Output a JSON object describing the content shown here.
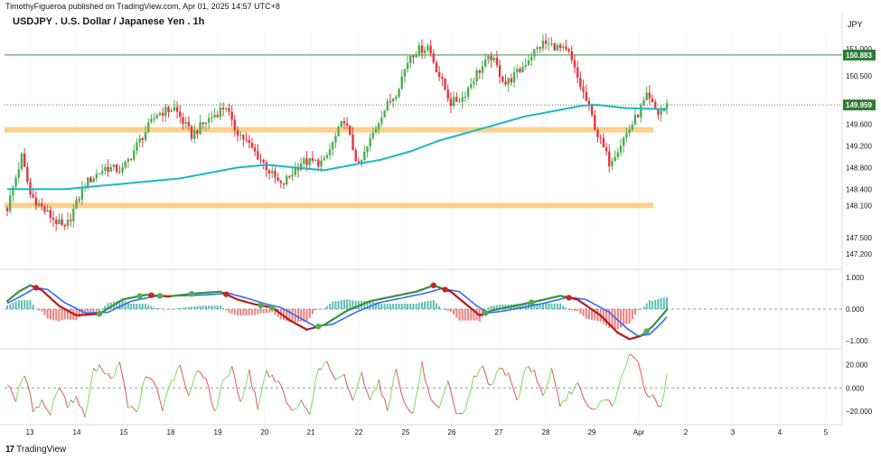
{
  "header": {
    "publisher": "TimothyFigueroa published on TradingView.com, Apr 01, 2025 14:57 UTC+8",
    "symbol": "USDJPY . U.S. Dollar / Japanese Yen . 1h",
    "currency": "JPY"
  },
  "footer": {
    "logo_text": "TradingView",
    "logo_icon": "tradingview-logo-icon"
  },
  "colors": {
    "up": "#4caf50",
    "down": "#e5343f",
    "ma": "#18b8c4",
    "zone": "#ffc77a",
    "hline": "#3d9140",
    "macd_fast": "#3d9140",
    "macd_signal": "#2962ff",
    "hist_up": "#26a69a",
    "hist_down": "#ef5350",
    "dot_up": "#4caf50",
    "dot_down": "#c62828",
    "osc_up": "#7be05a",
    "osc_down": "#e5535c",
    "price_label": "#2e7d32"
  },
  "chart_data": [
    {
      "type": "candlestick",
      "title": "USDJPY . U.S. Dollar / Japanese Yen . 1h",
      "x_ticks": [
        "13",
        "14",
        "15",
        "18",
        "19",
        "20",
        "21",
        "22",
        "25",
        "26",
        "27",
        "28",
        "29",
        "Apr",
        "2",
        "3",
        "4",
        "5"
      ],
      "y_ticks": [
        "151.000",
        "150.500",
        "149.600",
        "149.200",
        "148.800",
        "148.400",
        "148.100",
        "147.500",
        "147.200"
      ],
      "ylim": [
        146.95,
        151.3
      ],
      "candle_count": 230,
      "path_anchors": [
        [
          0,
          148.05
        ],
        [
          5,
          149.0
        ],
        [
          8,
          148.3
        ],
        [
          13,
          148.0
        ],
        [
          20,
          147.65
        ],
        [
          27,
          148.5
        ],
        [
          34,
          148.8
        ],
        [
          40,
          148.75
        ],
        [
          46,
          149.3
        ],
        [
          52,
          149.8
        ],
        [
          58,
          149.9
        ],
        [
          64,
          149.4
        ],
        [
          70,
          149.7
        ],
        [
          76,
          149.95
        ],
        [
          78,
          149.6
        ],
        [
          88,
          148.95
        ],
        [
          95,
          148.45
        ],
        [
          102,
          148.9
        ],
        [
          110,
          148.9
        ],
        [
          117,
          149.7
        ],
        [
          122,
          148.8
        ],
        [
          130,
          149.8
        ],
        [
          135,
          150.2
        ],
        [
          140,
          150.9
        ],
        [
          146,
          151.05
        ],
        [
          150,
          150.5
        ],
        [
          154,
          150.0
        ],
        [
          158,
          150.1
        ],
        [
          163,
          150.55
        ],
        [
          168,
          150.85
        ],
        [
          173,
          150.35
        ],
        [
          178,
          150.6
        ],
        [
          182,
          150.9
        ],
        [
          186,
          151.1
        ],
        [
          190,
          151.05
        ],
        [
          195,
          150.9
        ],
        [
          198,
          150.45
        ],
        [
          202,
          149.9
        ],
        [
          205,
          149.4
        ],
        [
          209,
          148.9
        ],
        [
          213,
          149.25
        ],
        [
          218,
          149.7
        ],
        [
          222,
          150.1
        ],
        [
          226,
          149.8
        ],
        [
          229,
          149.95
        ]
      ],
      "moving_average_anchors": [
        [
          0,
          148.4
        ],
        [
          20,
          148.4
        ],
        [
          40,
          148.5
        ],
        [
          60,
          148.6
        ],
        [
          80,
          148.8
        ],
        [
          90,
          148.85
        ],
        [
          110,
          148.75
        ],
        [
          120,
          148.85
        ],
        [
          130,
          148.95
        ],
        [
          140,
          149.1
        ],
        [
          150,
          149.3
        ],
        [
          160,
          149.45
        ],
        [
          170,
          149.6
        ],
        [
          180,
          149.75
        ],
        [
          190,
          149.85
        ],
        [
          200,
          149.95
        ],
        [
          205,
          149.96
        ],
        [
          215,
          149.9
        ],
        [
          229,
          149.88
        ]
      ],
      "horizontal_lines": [
        150.883,
        149.959
      ],
      "support_zones": [
        [
          149.55,
          149.45
        ],
        [
          148.15,
          148.05
        ]
      ],
      "price_labels": [
        {
          "value": "150.883",
          "price": 150.883
        },
        {
          "value": "149.959",
          "price": 149.959
        }
      ]
    },
    {
      "type": "line",
      "name": "momentum oscillator with histogram",
      "y_ticks": [
        "1.000",
        "0.000",
        "−1.000"
      ],
      "ylim": [
        -1.2,
        1.2
      ],
      "fast_anchors": [
        [
          0,
          0.25
        ],
        [
          4,
          0.55
        ],
        [
          8,
          0.75
        ],
        [
          12,
          0.6
        ],
        [
          18,
          0.1
        ],
        [
          24,
          -0.2
        ],
        [
          32,
          -0.15
        ],
        [
          40,
          0.3
        ],
        [
          48,
          0.45
        ],
        [
          56,
          0.4
        ],
        [
          66,
          0.5
        ],
        [
          74,
          0.55
        ],
        [
          80,
          0.3
        ],
        [
          86,
          0.15
        ],
        [
          92,
          0.05
        ],
        [
          98,
          -0.35
        ],
        [
          104,
          -0.65
        ],
        [
          110,
          -0.5
        ],
        [
          118,
          -0.05
        ],
        [
          126,
          0.25
        ],
        [
          134,
          0.4
        ],
        [
          142,
          0.55
        ],
        [
          148,
          0.75
        ],
        [
          154,
          0.55
        ],
        [
          160,
          0.1
        ],
        [
          164,
          -0.2
        ],
        [
          168,
          -0.05
        ],
        [
          176,
          0.1
        ],
        [
          184,
          0.25
        ],
        [
          192,
          0.42
        ],
        [
          198,
          0.3
        ],
        [
          206,
          -0.2
        ],
        [
          212,
          -0.75
        ],
        [
          216,
          -0.95
        ],
        [
          220,
          -0.85
        ],
        [
          224,
          -0.55
        ],
        [
          229,
          -0.02
        ]
      ],
      "signal_anchors": [
        [
          0,
          0.18
        ],
        [
          5,
          0.42
        ],
        [
          10,
          0.68
        ],
        [
          14,
          0.62
        ],
        [
          20,
          0.2
        ],
        [
          27,
          -0.12
        ],
        [
          35,
          -0.1
        ],
        [
          43,
          0.25
        ],
        [
          51,
          0.4
        ],
        [
          60,
          0.42
        ],
        [
          69,
          0.45
        ],
        [
          77,
          0.5
        ],
        [
          83,
          0.35
        ],
        [
          89,
          0.18
        ],
        [
          95,
          0.05
        ],
        [
          101,
          -0.25
        ],
        [
          107,
          -0.55
        ],
        [
          113,
          -0.48
        ],
        [
          121,
          -0.1
        ],
        [
          129,
          0.2
        ],
        [
          137,
          0.35
        ],
        [
          145,
          0.5
        ],
        [
          151,
          0.65
        ],
        [
          157,
          0.55
        ],
        [
          163,
          0.1
        ],
        [
          167,
          -0.12
        ],
        [
          171,
          -0.08
        ],
        [
          179,
          0.05
        ],
        [
          187,
          0.2
        ],
        [
          195,
          0.38
        ],
        [
          201,
          0.3
        ],
        [
          209,
          -0.1
        ],
        [
          215,
          -0.6
        ],
        [
          219,
          -0.85
        ],
        [
          223,
          -0.8
        ],
        [
          227,
          -0.45
        ],
        [
          229,
          -0.25
        ]
      ],
      "cross_markers": [
        {
          "x": 10,
          "dir": "down"
        },
        {
          "x": 32,
          "dir": "up"
        },
        {
          "x": 46,
          "dir": "up"
        },
        {
          "x": 50,
          "dir": "down"
        },
        {
          "x": 53,
          "dir": "up"
        },
        {
          "x": 64,
          "dir": "up"
        },
        {
          "x": 76,
          "dir": "down"
        },
        {
          "x": 88,
          "dir": "up"
        },
        {
          "x": 92,
          "dir": "up"
        },
        {
          "x": 108,
          "dir": "up"
        },
        {
          "x": 148,
          "dir": "down"
        },
        {
          "x": 152,
          "dir": "down"
        },
        {
          "x": 166,
          "dir": "up"
        },
        {
          "x": 182,
          "dir": "up"
        },
        {
          "x": 195,
          "dir": "down"
        },
        {
          "x": 222,
          "dir": "up"
        }
      ]
    },
    {
      "type": "line",
      "name": "oscillator",
      "y_ticks": [
        "20.000",
        "0.000",
        "−20.000"
      ],
      "ylim": [
        -30,
        32
      ],
      "anchors": [
        [
          0,
          5
        ],
        [
          3,
          -10
        ],
        [
          6,
          12
        ],
        [
          9,
          -18
        ],
        [
          12,
          -12
        ],
        [
          15,
          -22
        ],
        [
          18,
          3
        ],
        [
          21,
          -15
        ],
        [
          24,
          -8
        ],
        [
          27,
          -25
        ],
        [
          30,
          15
        ],
        [
          33,
          18
        ],
        [
          36,
          8
        ],
        [
          39,
          20
        ],
        [
          42,
          -15
        ],
        [
          45,
          -22
        ],
        [
          48,
          10
        ],
        [
          51,
          6
        ],
        [
          54,
          -18
        ],
        [
          57,
          5
        ],
        [
          60,
          18
        ],
        [
          63,
          -8
        ],
        [
          66,
          15
        ],
        [
          69,
          10
        ],
        [
          72,
          -22
        ],
        [
          75,
          5
        ],
        [
          78,
          18
        ],
        [
          81,
          -12
        ],
        [
          84,
          13
        ],
        [
          87,
          -16
        ],
        [
          90,
          14
        ],
        [
          93,
          8
        ],
        [
          96,
          -5
        ],
        [
          99,
          -22
        ],
        [
          102,
          -12
        ],
        [
          105,
          -20
        ],
        [
          108,
          15
        ],
        [
          111,
          22
        ],
        [
          114,
          5
        ],
        [
          117,
          10
        ],
        [
          120,
          -10
        ],
        [
          123,
          12
        ],
        [
          126,
          -8
        ],
        [
          129,
          5
        ],
        [
          132,
          -20
        ],
        [
          135,
          18
        ],
        [
          138,
          -15
        ],
        [
          141,
          -22
        ],
        [
          144,
          20
        ],
        [
          147,
          -12
        ],
        [
          150,
          -20
        ],
        [
          153,
          5
        ],
        [
          156,
          -25
        ],
        [
          159,
          -18
        ],
        [
          162,
          8
        ],
        [
          165,
          18
        ],
        [
          168,
          0
        ],
        [
          171,
          20
        ],
        [
          174,
          10
        ],
        [
          177,
          -12
        ],
        [
          180,
          18
        ],
        [
          183,
          15
        ],
        [
          186,
          -8
        ],
        [
          189,
          16
        ],
        [
          192,
          -18
        ],
        [
          195,
          -5
        ],
        [
          198,
          3
        ],
        [
          201,
          -16
        ],
        [
          204,
          -20
        ],
        [
          207,
          -8
        ],
        [
          210,
          -15
        ],
        [
          213,
          5
        ],
        [
          216,
          28
        ],
        [
          219,
          22
        ],
        [
          222,
          -6
        ],
        [
          225,
          -8
        ],
        [
          227,
          -18
        ],
        [
          229,
          10
        ]
      ]
    }
  ]
}
